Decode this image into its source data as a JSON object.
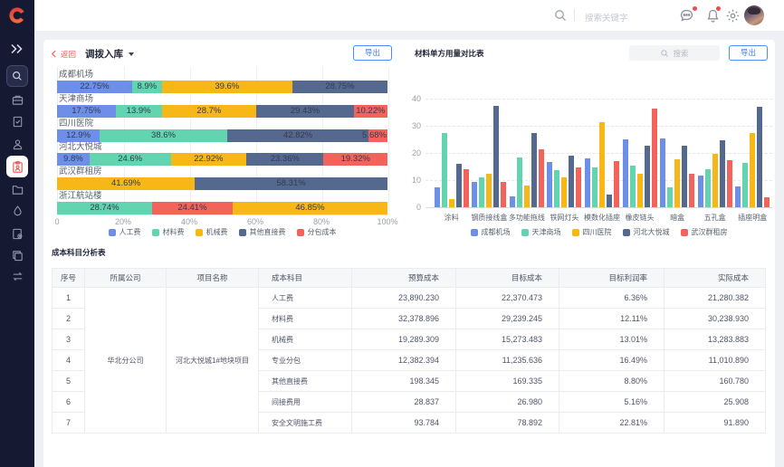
{
  "topbar": {
    "search_placeholder": "搜索关键字"
  },
  "sidebar": {
    "items": [
      "expand",
      "search",
      "briefcase",
      "document-check",
      "user",
      "clipboard",
      "folder",
      "droplet",
      "document-gear",
      "copy",
      "transfer"
    ],
    "active_item": "clipboard"
  },
  "panel_left": {
    "back_label": "返回",
    "title": "调拨入库",
    "export_label": "导出"
  },
  "panel_right": {
    "title": "材料单方用量对比表",
    "search_placeholder": "搜索",
    "export_label": "导出"
  },
  "colors": {
    "blue": "#6d8fe8",
    "green": "#62d4b0",
    "yellow": "#f7b817",
    "slate": "#55698f",
    "red": "#f2635c"
  },
  "chart_data": [
    {
      "type": "bar",
      "orientation": "horizontal-stacked-percent",
      "categories": [
        "成都机场",
        "天津商场",
        "四川医院",
        "河北大悦城",
        "武汉群租房",
        "浙江航站楼"
      ],
      "legend": [
        "人工费",
        "材料费",
        "机械费",
        "其他直接费",
        "分包成本"
      ],
      "legend_colors": [
        "#6d8fe8",
        "#62d4b0",
        "#f7b817",
        "#55698f",
        "#f2635c"
      ],
      "x_ticks": [
        "0",
        "20%",
        "40%",
        "60%",
        "80%",
        "100%"
      ],
      "xlim": [
        0,
        100
      ],
      "rows": [
        {
          "segments": [
            {
              "series": "人工费",
              "value": 22.75
            },
            {
              "series": "材料费",
              "value": 8.9
            },
            {
              "series": "机械费",
              "value": 39.6
            },
            {
              "series": "其他直接费",
              "value": 28.75
            }
          ]
        },
        {
          "segments": [
            {
              "series": "人工费",
              "value": 17.75
            },
            {
              "series": "材料费",
              "value": 13.9
            },
            {
              "series": "机械费",
              "value": 28.7
            },
            {
              "series": "其他直接费",
              "value": 29.43
            },
            {
              "series": "分包成本",
              "value": 10.22
            }
          ]
        },
        {
          "segments": [
            {
              "series": "人工费",
              "value": 12.9
            },
            {
              "series": "材料费",
              "value": 38.6
            },
            {
              "series": "其他直接费",
              "value": 42.82
            },
            {
              "series": "分包成本",
              "value": 5.68
            }
          ]
        },
        {
          "segments": [
            {
              "series": "人工费",
              "value": 9.8
            },
            {
              "series": "材料费",
              "value": 24.6
            },
            {
              "series": "机械费",
              "value": 22.92
            },
            {
              "series": "其他直接费",
              "value": 23.36
            },
            {
              "series": "分包成本",
              "value": 19.32
            }
          ]
        },
        {
          "segments": [
            {
              "series": "机械费",
              "value": 41.69
            },
            {
              "series": "其他直接费",
              "value": 58.31
            }
          ]
        },
        {
          "segments": [
            {
              "series": "材料费",
              "value": 28.74
            },
            {
              "series": "分包成本",
              "value": 24.41
            },
            {
              "series": "机械费",
              "value": 46.85
            }
          ]
        }
      ],
      "series_color_map": {
        "人工费": "#6d8fe8",
        "材料费": "#62d4b0",
        "机械费": "#f7b817",
        "其他直接费": "#55698f",
        "分包成本": "#f2635c"
      }
    },
    {
      "type": "bar",
      "orientation": "vertical-grouped",
      "title": "材料单方用量对比表",
      "categories": [
        "涂料",
        "钢质接线盒",
        "多功能拖线",
        "铁网灯头",
        "模数化插座",
        "橡皮链头",
        "暗盒",
        "五孔盒",
        "插座明盒"
      ],
      "y_ticks": [
        0,
        10,
        20,
        30,
        40
      ],
      "ylim": [
        0,
        40
      ],
      "series": [
        {
          "name": "成都机场",
          "color": "#6d8fe8",
          "values": [
            7.5,
            9.3,
            4,
            16.7,
            18,
            25,
            25.2,
            11.8,
            7.7
          ]
        },
        {
          "name": "天津商场",
          "color": "#62d4b0",
          "values": [
            27.5,
            11,
            18.3,
            13.8,
            14.7,
            15.4,
            7.3,
            14,
            16.5
          ]
        },
        {
          "name": "四川医院",
          "color": "#f7b817",
          "values": [
            3,
            12.5,
            8,
            11,
            31.5,
            12.2,
            17.8,
            19.8,
            27.2
          ]
        },
        {
          "name": "河北大悦城",
          "color": "#55698f",
          "values": [
            16,
            37.3,
            27.2,
            19,
            4.8,
            22.6,
            22.6,
            24.6,
            37
          ]
        },
        {
          "name": "武汉群租房",
          "color": "#f2635c",
          "values": [
            14,
            9.3,
            21.3,
            14.6,
            17,
            36.5,
            12.5,
            17.2,
            3.8
          ]
        }
      ]
    }
  ],
  "table": {
    "heading": "成本科目分析表",
    "columns": [
      "序号",
      "所属公司",
      "项目名称",
      "成本科目",
      "预算成本",
      "目标成本",
      "目标利润率",
      "实际成本"
    ],
    "company": "华北分公司",
    "project": "河北大悦城1#地块项目",
    "rows": [
      {
        "no": "1",
        "subject": "人工费",
        "budget": "23,890.230",
        "target": "22,370.473",
        "margin": "6.36%",
        "actual": "21,280.382"
      },
      {
        "no": "2",
        "subject": "材料费",
        "budget": "32,378.896",
        "target": "29,239.245",
        "margin": "12.11%",
        "actual": "30,238.930"
      },
      {
        "no": "3",
        "subject": "机械费",
        "budget": "19,289.309",
        "target": "15,273.483",
        "margin": "13.01%",
        "actual": "13,283.883"
      },
      {
        "no": "4",
        "subject": "专业分包",
        "budget": "12,382.394",
        "target": "11,235.636",
        "margin": "16.49%",
        "actual": "11,010.890"
      },
      {
        "no": "5",
        "subject": "其他直接费",
        "budget": "198.345",
        "target": "169.335",
        "margin": "8.80%",
        "actual": "160.780"
      },
      {
        "no": "6",
        "subject": "间接费用",
        "budget": "28.837",
        "target": "26.980",
        "margin": "5.16%",
        "actual": "25.908"
      },
      {
        "no": "7",
        "subject": "安全文明施工费",
        "budget": "93.784",
        "target": "78.892",
        "margin": "22.81%",
        "actual": "91.890"
      }
    ]
  }
}
